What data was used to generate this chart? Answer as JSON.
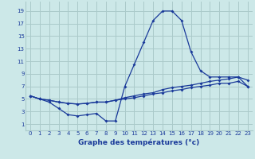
{
  "xlabel": "Graphe des températures (°c)",
  "bg_color": "#cce8e8",
  "grid_color": "#aacaca",
  "line_color": "#1a3a9a",
  "x_ticks": [
    0,
    1,
    2,
    3,
    4,
    5,
    6,
    7,
    8,
    9,
    10,
    11,
    12,
    13,
    14,
    15,
    16,
    17,
    18,
    19,
    20,
    21,
    22,
    23
  ],
  "y_ticks": [
    1,
    3,
    5,
    7,
    9,
    11,
    13,
    15,
    17,
    19
  ],
  "xlim": [
    -0.5,
    23.5
  ],
  "ylim": [
    0,
    20.5
  ],
  "line1_x": [
    0,
    1,
    2,
    3,
    4,
    5,
    6,
    7,
    8,
    9,
    10,
    11,
    12,
    13,
    14,
    15,
    16,
    17,
    18,
    19,
    20,
    21,
    22,
    23
  ],
  "line1_y": [
    5.5,
    5.0,
    4.5,
    3.5,
    2.5,
    2.3,
    2.5,
    2.7,
    1.5,
    1.5,
    7.0,
    10.5,
    14.0,
    17.5,
    19.0,
    19.0,
    17.5,
    12.5,
    9.5,
    8.5,
    8.5,
    8.5,
    8.5,
    7.0
  ],
  "line2_x": [
    0,
    1,
    2,
    3,
    4,
    5,
    6,
    7,
    8,
    9,
    10,
    11,
    12,
    13,
    14,
    15,
    16,
    17,
    18,
    19,
    20,
    21,
    22,
    23
  ],
  "line2_y": [
    5.5,
    5.0,
    4.8,
    4.5,
    4.3,
    4.2,
    4.3,
    4.5,
    4.5,
    4.8,
    5.0,
    5.2,
    5.5,
    5.8,
    6.0,
    6.3,
    6.5,
    6.8,
    7.0,
    7.2,
    7.5,
    7.5,
    7.8,
    7.0
  ],
  "line3_x": [
    0,
    1,
    2,
    3,
    4,
    5,
    6,
    7,
    8,
    9,
    10,
    11,
    12,
    13,
    14,
    15,
    16,
    17,
    18,
    19,
    20,
    21,
    22,
    23
  ],
  "line3_y": [
    5.5,
    5.0,
    4.8,
    4.5,
    4.3,
    4.2,
    4.3,
    4.5,
    4.5,
    4.8,
    5.2,
    5.5,
    5.8,
    6.0,
    6.5,
    6.8,
    7.0,
    7.2,
    7.5,
    7.8,
    8.0,
    8.2,
    8.5,
    8.0
  ]
}
